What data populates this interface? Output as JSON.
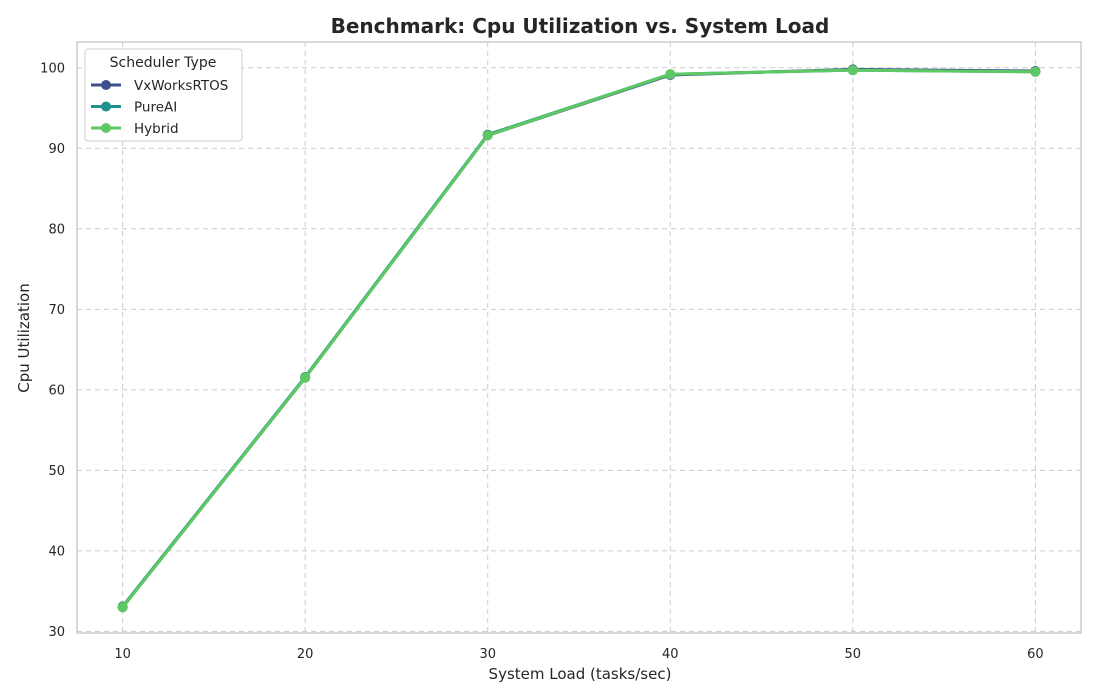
{
  "chart_data": {
    "type": "line",
    "title": "Benchmark: Cpu Utilization vs. System Load",
    "xlabel": "System Load (tasks/sec)",
    "ylabel": "Cpu Utilization",
    "x": [
      10,
      20,
      30,
      40,
      50,
      60
    ],
    "xlim": [
      7.5,
      62.5
    ],
    "ylim": [
      29.8,
      103.2
    ],
    "xticks": [
      10,
      20,
      30,
      40,
      50,
      60
    ],
    "yticks": [
      30,
      40,
      50,
      60,
      70,
      80,
      90,
      100
    ],
    "grid": true,
    "legend": {
      "title": "Scheduler Type",
      "placement": "top-left"
    },
    "series": [
      {
        "name": "VxWorksRTOS",
        "color": "#3b4f8c",
        "values": [
          33.0,
          61.5,
          91.6,
          99.1,
          99.8,
          99.6
        ]
      },
      {
        "name": "PureAI",
        "color": "#21918c",
        "values": [
          33.1,
          61.6,
          91.7,
          99.2,
          99.7,
          99.5
        ]
      },
      {
        "name": "Hybrid",
        "color": "#5ec962",
        "values": [
          33.0,
          61.5,
          91.6,
          99.2,
          99.7,
          99.5
        ]
      }
    ]
  }
}
